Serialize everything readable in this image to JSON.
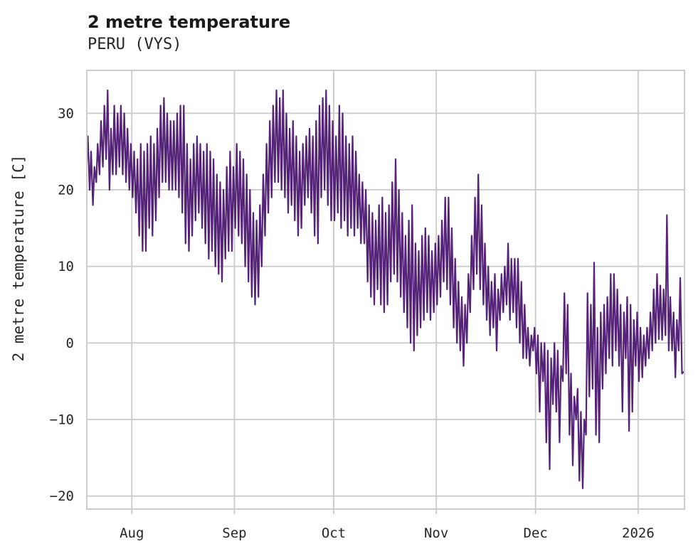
{
  "header": {
    "title": "2 metre temperature",
    "subtitle": "PERU (VYS)"
  },
  "chart_data": {
    "type": "line",
    "title": "2 metre temperature",
    "subtitle": "PERU (VYS)",
    "ylabel": "2 metre temperature [C]",
    "xlabel": "",
    "legend": "none",
    "grid": "on",
    "background": "#ffffff",
    "line_color": "#552378",
    "grid_color": "#cccccc",
    "text_color": "#262626",
    "ylim": [
      -21.7,
      35.6
    ],
    "yticks": [
      30,
      20,
      10,
      0,
      -10,
      -20
    ],
    "xlim_days": [
      0.4,
      181
    ],
    "x_ticks": [
      {
        "label": "Aug",
        "day": 14
      },
      {
        "label": "Sep",
        "day": 45
      },
      {
        "label": "Oct",
        "day": 75
      },
      {
        "label": "Nov",
        "day": 106
      },
      {
        "label": "Dec",
        "day": 136
      },
      {
        "label": "2026",
        "day": 167
      }
    ],
    "series_description": "daily minimum and maximum 2 m temperature (deg C); day 0 = mid-July start of the displayed period, ticks mark month starts",
    "days_total": 181,
    "tmin": [
      22,
      20,
      18,
      21,
      22,
      23,
      24,
      20,
      22,
      22,
      23,
      22,
      21,
      20,
      19,
      17,
      14,
      12,
      12,
      15,
      14,
      16,
      19,
      21,
      21,
      20,
      20,
      20,
      19,
      17,
      13,
      12,
      14,
      16,
      17,
      15,
      13,
      11,
      12,
      10,
      9,
      8,
      11,
      12,
      12,
      15,
      14,
      13,
      10,
      8,
      6,
      5,
      6,
      10,
      14,
      17,
      19,
      21,
      21,
      20,
      19,
      17,
      18,
      16,
      14,
      15,
      18,
      19,
      17,
      14,
      13,
      19,
      20,
      18,
      16,
      16,
      17,
      15,
      16,
      14,
      15,
      14,
      15,
      13,
      13,
      8,
      6,
      5,
      7,
      5,
      4,
      5,
      8,
      9,
      8,
      6,
      4,
      2,
      0,
      -1,
      1,
      2,
      3,
      4,
      3,
      4,
      5,
      6,
      8,
      7,
      5,
      2,
      0,
      -1,
      -3,
      0,
      4,
      7,
      9,
      7,
      5,
      3,
      1,
      2,
      -1,
      3,
      4,
      5,
      3,
      4,
      2,
      0,
      -2,
      -2,
      -3,
      -1,
      -4,
      -9,
      -5,
      -13,
      -16.5,
      -8,
      -9,
      -13,
      -5,
      -4,
      -12,
      -16,
      -10,
      -18,
      -19,
      -12,
      -7,
      -6,
      -12,
      -13,
      -6,
      -4,
      -2,
      -3,
      -1,
      -3,
      -9,
      -2,
      -11.5,
      -9,
      -3,
      -5,
      -4.5,
      -3,
      -2,
      -1,
      0,
      0.5,
      0.4,
      1,
      -1,
      -1,
      -4.5,
      -1,
      -4
    ],
    "tmax": [
      27,
      25,
      23,
      26,
      29,
      31,
      33,
      28,
      31,
      30,
      31,
      30,
      28,
      26,
      25,
      24,
      26,
      25,
      26,
      27,
      26,
      28,
      31,
      32,
      30,
      29,
      29,
      30,
      31,
      31,
      26,
      24,
      26,
      27,
      26,
      25,
      26,
      25,
      24,
      22,
      21,
      20,
      23,
      25,
      23,
      26,
      25,
      24,
      22,
      20,
      17,
      16,
      18,
      22,
      26,
      29,
      31,
      33,
      32,
      33,
      30,
      28,
      29,
      27,
      25,
      26,
      27,
      28,
      27,
      29,
      31,
      32,
      33,
      31,
      29,
      27,
      31,
      30,
      27,
      26,
      27,
      25,
      22,
      21,
      20,
      18,
      17,
      16,
      18,
      19,
      17,
      18,
      21,
      24,
      20,
      17,
      14,
      16,
      18,
      13,
      12,
      14,
      15,
      14,
      12,
      13,
      14,
      16,
      19,
      19,
      15,
      11,
      8,
      6,
      5,
      9,
      14,
      19,
      22,
      18,
      13,
      10,
      8,
      9,
      7,
      9,
      10,
      13,
      11,
      11,
      11,
      8,
      5,
      2,
      1,
      2,
      1,
      0,
      0,
      -1,
      -2,
      0,
      -1,
      -3,
      6.5,
      5,
      -4,
      -7,
      -6,
      -9,
      -10,
      6.5,
      5,
      10.5,
      2,
      4,
      5,
      6,
      9,
      9,
      7,
      5,
      4,
      6,
      5,
      3,
      4,
      2,
      1,
      2,
      4,
      7,
      9,
      7.5,
      7,
      16.7,
      6,
      4,
      3,
      8.5,
      -3.8
    ]
  }
}
